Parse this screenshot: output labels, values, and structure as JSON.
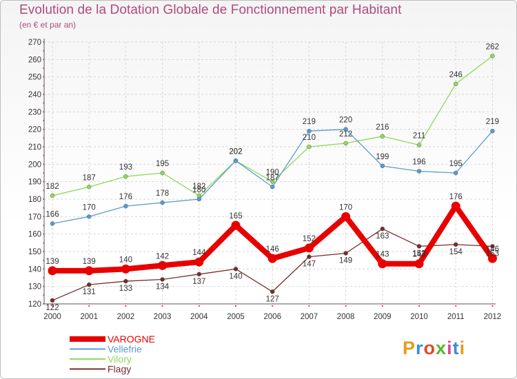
{
  "title": "Evolution de la Dotation Globale de Fonctionnement par Habitant",
  "subtitle": "(en € et par an)",
  "logo": {
    "text": "Proxiti",
    "colors": [
      "#e69b1c",
      "#3a8fd6",
      "#e04a2a",
      "#5bb52a",
      "#d44a9a",
      "#3a8fd6",
      "#e69b1c"
    ]
  },
  "chart_data": {
    "type": "line",
    "title": "Evolution de la Dotation Globale de Fonctionnement par Habitant",
    "subtitle": "(en € et par an)",
    "x": [
      2000,
      2001,
      2002,
      2003,
      2004,
      2005,
      2006,
      2007,
      2008,
      2009,
      2010,
      2011,
      2012
    ],
    "ylim": [
      120,
      270
    ],
    "yticks": [
      120,
      130,
      140,
      150,
      160,
      170,
      180,
      190,
      200,
      210,
      220,
      230,
      240,
      250,
      260,
      270
    ],
    "grid": true,
    "legend_position": "bottom-left",
    "series": [
      {
        "name": "VAROGNE",
        "color": "#e80000",
        "values": [
          139,
          139,
          140,
          142,
          144,
          165,
          146,
          152,
          170,
          143,
          143,
          176,
          146
        ]
      },
      {
        "name": "Vellefrie",
        "color": "#5a9bd0",
        "values": [
          166,
          170,
          176,
          178,
          180,
          202,
          187,
          219,
          220,
          199,
          196,
          195,
          219
        ]
      },
      {
        "name": "Vilory",
        "color": "#8fd85a",
        "values": [
          182,
          187,
          193,
          195,
          182,
          202,
          190,
          210,
          212,
          216,
          211,
          246,
          262
        ]
      },
      {
        "name": "Flagy",
        "color": "#7a2a2a",
        "values": [
          122,
          131,
          133,
          134,
          137,
          140,
          127,
          147,
          149,
          163,
          153,
          154,
          153
        ]
      }
    ]
  }
}
